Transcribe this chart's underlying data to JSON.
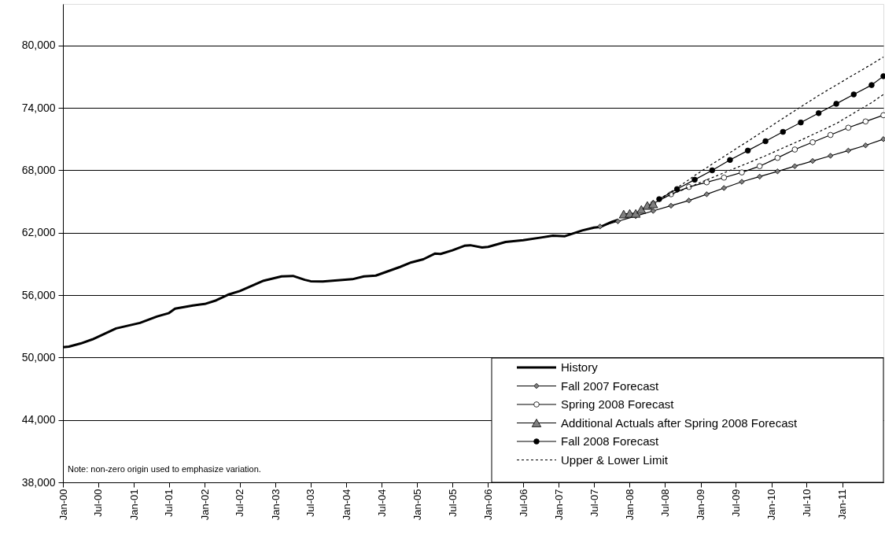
{
  "chart_data": {
    "type": "line",
    "xlim": [
      "2000-01",
      "2011-08"
    ],
    "xticks": [
      {
        "value": "2000-01",
        "label": "Jan-00"
      },
      {
        "value": "2000-07",
        "label": "Jul-00"
      },
      {
        "value": "2001-01",
        "label": "Jan-01"
      },
      {
        "value": "2001-07",
        "label": "Jul-01"
      },
      {
        "value": "2002-01",
        "label": "Jan-02"
      },
      {
        "value": "2002-07",
        "label": "Jul-02"
      },
      {
        "value": "2003-01",
        "label": "Jan-03"
      },
      {
        "value": "2003-07",
        "label": "Jul-03"
      },
      {
        "value": "2004-01",
        "label": "Jan-04"
      },
      {
        "value": "2004-07",
        "label": "Jul-04"
      },
      {
        "value": "2005-01",
        "label": "Jan-05"
      },
      {
        "value": "2005-07",
        "label": "Jul-05"
      },
      {
        "value": "2006-01",
        "label": "Jan-06"
      },
      {
        "value": "2006-07",
        "label": "Jul-06"
      },
      {
        "value": "2007-01",
        "label": "Jan-07"
      },
      {
        "value": "2007-07",
        "label": "Jul-07"
      },
      {
        "value": "2008-01",
        "label": "Jan-08"
      },
      {
        "value": "2008-07",
        "label": "Jul-08"
      },
      {
        "value": "2009-01",
        "label": "Jan-09"
      },
      {
        "value": "2009-07",
        "label": "Jul-09"
      },
      {
        "value": "2010-01",
        "label": "Jan-10"
      },
      {
        "value": "2010-07",
        "label": "Jul-10"
      },
      {
        "value": "2011-01",
        "label": "Jan-11"
      }
    ],
    "ylim": [
      38000,
      84000
    ],
    "yticks": [
      {
        "value": 38000,
        "label": "38,000"
      },
      {
        "value": 44000,
        "label": "44,000"
      },
      {
        "value": 50000,
        "label": "50,000"
      },
      {
        "value": 56000,
        "label": "56,000"
      },
      {
        "value": 62000,
        "label": "62,000"
      },
      {
        "value": 68000,
        "label": "68,000"
      },
      {
        "value": 74000,
        "label": "74,000"
      },
      {
        "value": 80000,
        "label": "80,000"
      }
    ],
    "grid": "y",
    "legend": "bottom right",
    "annotations": [
      "Note: non-zero origin used to emphasize variation."
    ],
    "series": [
      {
        "name": "History",
        "color": "#000000",
        "marker": "none",
        "line_style": "solid",
        "x": [
          "2000-01",
          "2000-02",
          "2000-04",
          "2000-06",
          "2000-08",
          "2000-10",
          "2001-02",
          "2001-05",
          "2001-07",
          "2001-08",
          "2001-11",
          "2002-01",
          "2002-03",
          "2002-05",
          "2002-07",
          "2002-11",
          "2003-02",
          "2003-04",
          "2003-06",
          "2003-07",
          "2003-09",
          "2004-02",
          "2004-04",
          "2004-06",
          "2004-10",
          "2004-12",
          "2005-02",
          "2005-04",
          "2005-05",
          "2005-07",
          "2005-09",
          "2005-10",
          "2005-12",
          "2006-01",
          "2006-04",
          "2006-07",
          "2006-10",
          "2006-12",
          "2007-02",
          "2007-05",
          "2007-07",
          "2007-08",
          "2007-10",
          "2007-11"
        ],
        "values": [
          51000,
          51050,
          51350,
          51750,
          52270,
          52800,
          53330,
          53950,
          54280,
          54700,
          55010,
          55150,
          55500,
          56040,
          56390,
          57390,
          57800,
          57850,
          57470,
          57340,
          57310,
          57530,
          57800,
          57880,
          58690,
          59150,
          59450,
          59990,
          59960,
          60310,
          60750,
          60800,
          60580,
          60640,
          61110,
          61290,
          61540,
          61720,
          61670,
          62220,
          62500,
          62550,
          63050,
          63230
        ]
      },
      {
        "name": "Fall 2007 Forecast",
        "color": "#808080",
        "marker": "diamond",
        "line_style": "solid",
        "x": [
          "2007-08",
          "2007-11",
          "2008-02",
          "2008-05",
          "2008-08",
          "2008-11",
          "2009-02",
          "2009-05",
          "2009-08",
          "2009-11",
          "2010-02",
          "2010-05",
          "2010-08",
          "2010-11",
          "2011-02",
          "2011-05",
          "2011-08"
        ],
        "values": [
          62600,
          63100,
          63600,
          64100,
          64600,
          65100,
          65700,
          66300,
          66900,
          67400,
          67900,
          68400,
          68900,
          69400,
          69900,
          70400,
          71000
        ]
      },
      {
        "name": "Spring 2008 Forecast",
        "color": "#ffffff",
        "marker": "circle",
        "line_style": "solid",
        "x": [
          "2008-05",
          "2008-08",
          "2008-11",
          "2009-02",
          "2009-05",
          "2009-08",
          "2009-11",
          "2010-02",
          "2010-05",
          "2010-08",
          "2010-11",
          "2011-02",
          "2011-05",
          "2011-08"
        ],
        "values": [
          64800,
          65700,
          66400,
          66850,
          67300,
          67800,
          68400,
          69200,
          70000,
          70700,
          71400,
          72100,
          72700,
          73300
        ]
      },
      {
        "name": "Additional Actuals after Spring 2008 Forecast",
        "color": "#808080",
        "marker": "triangle",
        "line_style": "solid",
        "x": [
          "2007-12",
          "2008-01",
          "2008-02",
          "2008-03",
          "2008-04",
          "2008-05"
        ],
        "values": [
          63790,
          63860,
          63860,
          64240,
          64620,
          64770
        ]
      },
      {
        "name": "Fall 2008 Forecast",
        "color": "#000000",
        "marker": "circle",
        "line_style": "solid",
        "x": [
          "2008-06",
          "2008-09",
          "2008-12",
          "2009-03",
          "2009-06",
          "2009-09",
          "2009-12",
          "2010-03",
          "2010-06",
          "2010-09",
          "2010-12",
          "2011-03",
          "2011-06",
          "2011-08"
        ],
        "values": [
          65230,
          66200,
          67100,
          68000,
          69000,
          69900,
          70800,
          71700,
          72600,
          73500,
          74400,
          75300,
          76200,
          77050
        ]
      },
      {
        "name": "Upper & Lower Limit",
        "color": "#000000",
        "marker": "none",
        "line_style": "dashed",
        "x": [
          "2008-06",
          "2008-09",
          "2008-12",
          "2009-03",
          "2009-06",
          "2009-09",
          "2009-12",
          "2010-03",
          "2010-06",
          "2010-09",
          "2010-12",
          "2011-03",
          "2011-06",
          "2011-08"
        ],
        "values": [
          65230,
          66300,
          67500,
          68600,
          69700,
          70800,
          71900,
          73000,
          74100,
          75200,
          76200,
          77200,
          78200,
          78900
        ]
      },
      {
        "color": "#000000",
        "marker": "none",
        "line_style": "dashed",
        "x": [
          "2008-06",
          "2008-09",
          "2008-12",
          "2009-03",
          "2009-06",
          "2009-09",
          "2009-12",
          "2010-03",
          "2010-06",
          "2010-09",
          "2010-12",
          "2011-03",
          "2011-06",
          "2011-08"
        ],
        "values": [
          65230,
          65900,
          66600,
          67300,
          68000,
          68700,
          69400,
          70150,
          70900,
          71700,
          72500,
          73500,
          74500,
          75300
        ]
      }
    ]
  }
}
